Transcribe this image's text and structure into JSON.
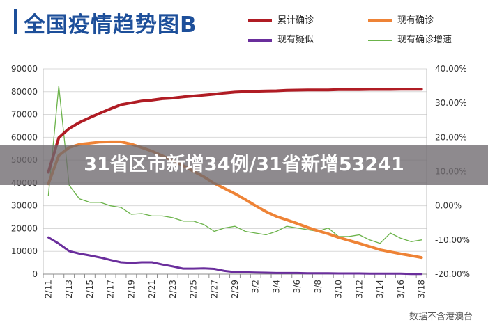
{
  "header": {
    "title": "全国疫情趋势图B"
  },
  "banner": {
    "text": "31省区市新增34例/31省新增53241"
  },
  "source": {
    "text": "数据不含港澳台"
  },
  "colors": {
    "cumulative": "#b01c24",
    "current": "#ee8336",
    "suspected": "#6a2e9c",
    "growth": "#6bb34a",
    "title": "#1d4f9a",
    "grid": "#d9d9d9"
  },
  "chart_data": {
    "type": "line",
    "title": "全国疫情趋势图B",
    "categories": [
      "2/11",
      "2/12",
      "2/13",
      "2/14",
      "2/15",
      "2/16",
      "2/17",
      "2/18",
      "2/19",
      "2/20",
      "2/21",
      "2/22",
      "2/23",
      "2/24",
      "2/25",
      "2/26",
      "2/27",
      "2/28",
      "2/29",
      "3/1",
      "3/2",
      "3/3",
      "3/4",
      "3/5",
      "3/6",
      "3/7",
      "3/8",
      "3/9",
      "3/10",
      "3/11",
      "3/12",
      "3/13",
      "3/14",
      "3/15",
      "3/16",
      "3/17",
      "3/18"
    ],
    "x_tick_labels": [
      "2/11",
      "2/13",
      "2/15",
      "2/17",
      "2/19",
      "2/21",
      "2/23",
      "2/25",
      "2/27",
      "2/29",
      "3/2",
      "3/4",
      "3/6",
      "3/8",
      "3/10",
      "3/12",
      "3/14",
      "3/16",
      "3/18"
    ],
    "y_left": {
      "min": 0,
      "max": 90000,
      "ticks": [
        "0",
        "10000",
        "20000",
        "30000",
        "40000",
        "50000",
        "60000",
        "70000",
        "80000",
        "90000"
      ]
    },
    "y_right": {
      "min": -20,
      "max": 40,
      "ticks": [
        "-20.00%",
        "-10.00%",
        "0.00%",
        "10.00%",
        "20.00%",
        "30.00%",
        "40.00%"
      ]
    },
    "grid": true,
    "legend_position": "top",
    "series": [
      {
        "name": "累计确诊",
        "axis": "left",
        "color": "#b01c24",
        "width": 4,
        "values": [
          44700,
          59800,
          63900,
          66500,
          68600,
          70600,
          72500,
          74300,
          75100,
          75900,
          76300,
          76900,
          77200,
          77700,
          78100,
          78500,
          78900,
          79400,
          79800,
          80000,
          80200,
          80300,
          80400,
          80600,
          80700,
          80800,
          80800,
          80800,
          80900,
          80900,
          80900,
          81000,
          81000,
          81000,
          81100,
          81100,
          81100
        ]
      },
      {
        "name": "现有确诊",
        "axis": "left",
        "color": "#ee8336",
        "width": 4,
        "values": [
          39600,
          52000,
          55500,
          56900,
          57400,
          57900,
          58000,
          58000,
          57000,
          55500,
          53900,
          51900,
          49800,
          47600,
          45100,
          42700,
          39800,
          37600,
          35300,
          32700,
          30000,
          27400,
          25300,
          23800,
          22200,
          20500,
          19000,
          17700,
          16100,
          14800,
          13500,
          12100,
          10700,
          9800,
          8900,
          8100,
          7300
        ]
      },
      {
        "name": "现有疑似",
        "axis": "left",
        "color": "#6a2e9c",
        "width": 3,
        "values": [
          16100,
          13400,
          10100,
          9000,
          8200,
          7300,
          6200,
          5200,
          4900,
          5200,
          5200,
          4200,
          3400,
          2400,
          2400,
          2500,
          2300,
          1400,
          900,
          800,
          700,
          600,
          500,
          500,
          500,
          400,
          400,
          400,
          300,
          300,
          300,
          200,
          200,
          200,
          200,
          100,
          100
        ]
      },
      {
        "name": "现有确诊增速",
        "axis": "right",
        "color": "#6bb34a",
        "width": 1.3,
        "values": [
          3,
          35,
          6,
          2,
          1,
          1,
          0,
          -0.5,
          -2.5,
          -2.3,
          -3,
          -3,
          -3.5,
          -4.5,
          -4.5,
          -5.5,
          -7.5,
          -6.5,
          -6,
          -7.5,
          -8,
          -8.5,
          -7.5,
          -6,
          -6.5,
          -7,
          -7.5,
          -6.5,
          -9,
          -9,
          -8.5,
          -10,
          -11,
          -8,
          -9.5,
          -10.5,
          -10
        ]
      }
    ]
  }
}
